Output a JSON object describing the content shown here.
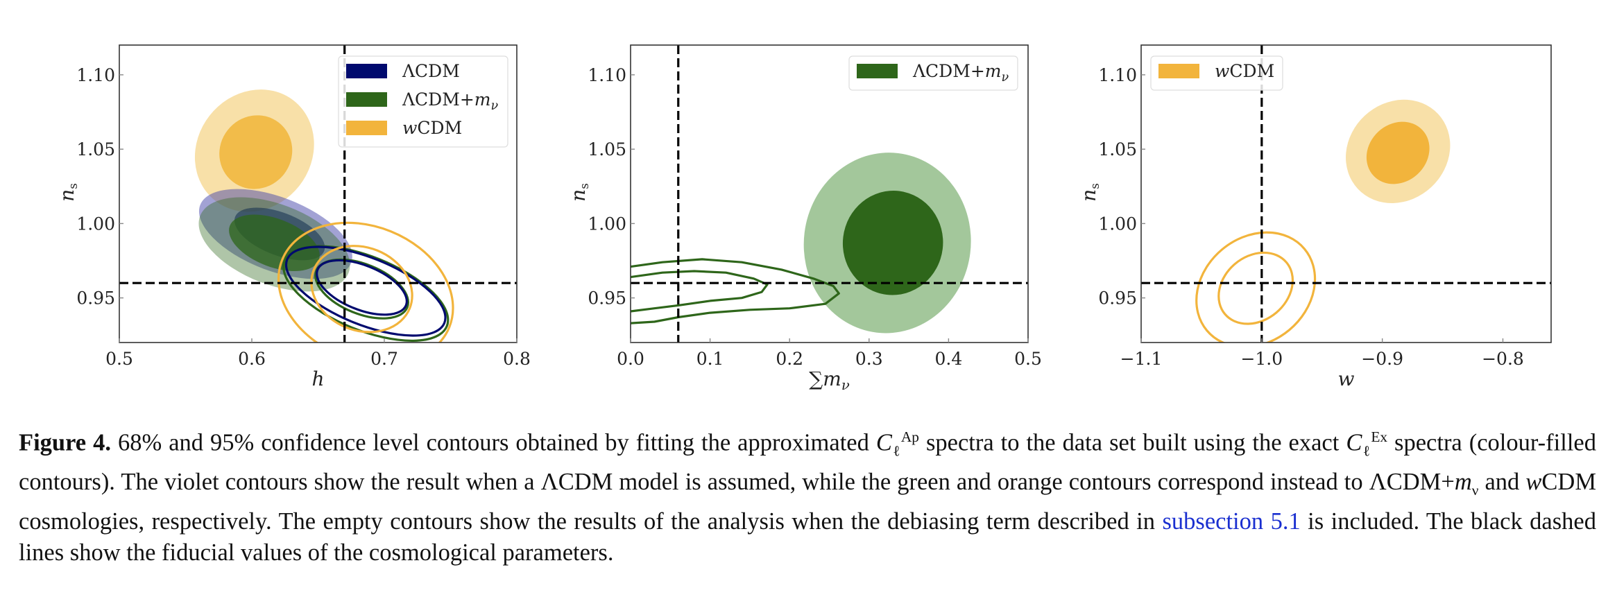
{
  "chart_data": [
    {
      "type": "contour",
      "panel": "h-ns",
      "xlabel": "h",
      "ylabel": "n_s",
      "xlim": [
        0.5,
        0.8
      ],
      "ylim": [
        0.92,
        1.12
      ],
      "xticks": [
        "0.5",
        "0.6",
        "0.7",
        "0.8"
      ],
      "xtick_values": [
        0.5,
        0.6,
        0.7,
        0.8
      ],
      "yticks": [
        "0.95",
        "1.00",
        "1.05",
        "1.10"
      ],
      "ytick_values": [
        0.95,
        1.0,
        1.05,
        1.1
      ],
      "fiducial": {
        "x": 0.67,
        "y": 0.96
      },
      "legend": {
        "placement": "top-right",
        "entries": [
          {
            "label": "ΛCDM",
            "color": "#000a6e"
          },
          {
            "label": "ΛCDM+m_ν",
            "color": "#2e661a"
          },
          {
            "label": "wCDM",
            "color": "#f2b43c"
          }
        ]
      },
      "contours": [
        {
          "model": "wCDM",
          "style": "filled",
          "level": "95%",
          "color": "#f8e0a8",
          "cx": 0.602,
          "cy": 1.049,
          "rx": 0.043,
          "ry": 0.0095,
          "angle": -38
        },
        {
          "model": "wCDM",
          "style": "filled",
          "level": "68%",
          "color": "#f2bc4a",
          "cx": 0.603,
          "cy": 1.048,
          "rx": 0.027,
          "ry": 0.0056,
          "angle": -38
        },
        {
          "model": "ΛCDM",
          "style": "filled",
          "level": "95%",
          "color": "rgba(70,70,170,0.5)",
          "cx": 0.618,
          "cy": 0.993,
          "rx": 0.061,
          "ry": 0.0055,
          "angle": -21
        },
        {
          "model": "ΛCDM",
          "style": "filled",
          "level": "68%",
          "color": "rgba(0,10,110,0.55)",
          "cx": 0.621,
          "cy": 0.993,
          "rx": 0.036,
          "ry": 0.0032,
          "angle": -21
        },
        {
          "model": "ΛCDM+m_ν",
          "style": "filled",
          "level": "95%",
          "color": "rgba(46,102,26,0.38)",
          "cx": 0.617,
          "cy": 0.986,
          "rx": 0.06,
          "ry": 0.006,
          "angle": -21
        },
        {
          "model": "ΛCDM+m_ν",
          "style": "filled",
          "level": "68%",
          "color": "rgba(46,102,26,0.75)",
          "cx": 0.617,
          "cy": 0.987,
          "rx": 0.036,
          "ry": 0.0036,
          "angle": -21
        },
        {
          "model": "ΛCDM+m_ν",
          "style": "open",
          "level": "95%",
          "color": "#2e661a",
          "cx": 0.686,
          "cy": 0.953,
          "rx": 0.066,
          "ry": 0.0055,
          "angle": -22
        },
        {
          "model": "ΛCDM",
          "style": "open",
          "level": "95%",
          "color": "#000a6e",
          "cx": 0.686,
          "cy": 0.9545,
          "rx": 0.064,
          "ry": 0.005,
          "angle": -22
        },
        {
          "model": "ΛCDM+m_ν",
          "style": "open",
          "level": "68%",
          "color": "#2e661a",
          "cx": 0.683,
          "cy": 0.956,
          "rx": 0.037,
          "ry": 0.0037,
          "angle": -22
        },
        {
          "model": "ΛCDM",
          "style": "open",
          "level": "68%",
          "color": "#000a6e",
          "cx": 0.683,
          "cy": 0.957,
          "rx": 0.036,
          "ry": 0.0033,
          "angle": -22
        },
        {
          "model": "wCDM",
          "style": "open",
          "level": "95%",
          "color": "#f2b43c",
          "cx": 0.686,
          "cy": 0.953,
          "rx": 0.068,
          "ry": 0.01,
          "angle": -22
        },
        {
          "model": "wCDM",
          "style": "open",
          "level": "68%",
          "color": "#f2b43c",
          "cx": 0.683,
          "cy": 0.956,
          "rx": 0.039,
          "ry": 0.0062,
          "angle": -22
        }
      ]
    },
    {
      "type": "contour",
      "panel": "mnu-ns",
      "xlabel": "∑m_ν",
      "ylabel": "n_s",
      "xlim": [
        0.0,
        0.5
      ],
      "ylim": [
        0.92,
        1.12
      ],
      "xticks": [
        "0.0",
        "0.1",
        "0.2",
        "0.3",
        "0.4",
        "0.5"
      ],
      "xtick_values": [
        0.0,
        0.1,
        0.2,
        0.3,
        0.4,
        0.5
      ],
      "yticks": [
        "0.95",
        "1.00",
        "1.05",
        "1.10"
      ],
      "ytick_values": [
        0.95,
        1.0,
        1.05,
        1.1
      ],
      "fiducial": {
        "x": 0.06,
        "y": 0.96
      },
      "legend": {
        "placement": "top-right",
        "entries": [
          {
            "label": "ΛCDM+m_ν",
            "color": "#2e661a"
          }
        ]
      },
      "contours": [
        {
          "model": "ΛCDM+m_ν",
          "style": "filled",
          "level": "95%",
          "color": "#a3c79b",
          "cx": 0.323,
          "cy": 0.987,
          "rx": 0.105,
          "ry": 0.0135,
          "angle": -7
        },
        {
          "model": "ΛCDM+m_ν",
          "style": "filled",
          "level": "68%",
          "color": "#2e661a",
          "cx": 0.33,
          "cy": 0.987,
          "rx": 0.063,
          "ry": 0.0078,
          "angle": -7
        }
      ],
      "open_contours": [
        {
          "model": "ΛCDM+m_ν",
          "level": "95%",
          "color": "#2e661a",
          "points": [
            [
              0.0,
              0.971
            ],
            [
              0.04,
              0.974
            ],
            [
              0.09,
              0.976
            ],
            [
              0.14,
              0.974
            ],
            [
              0.19,
              0.969
            ],
            [
              0.23,
              0.963
            ],
            [
              0.255,
              0.958
            ],
            [
              0.262,
              0.953
            ],
            [
              0.245,
              0.946
            ],
            [
              0.2,
              0.943
            ],
            [
              0.15,
              0.942
            ],
            [
              0.1,
              0.94
            ],
            [
              0.06,
              0.937
            ],
            [
              0.03,
              0.934
            ],
            [
              0.0,
              0.933
            ]
          ]
        },
        {
          "model": "ΛCDM+m_ν",
          "level": "68%",
          "color": "#2e661a",
          "points": [
            [
              0.0,
              0.964
            ],
            [
              0.04,
              0.967
            ],
            [
              0.08,
              0.968
            ],
            [
              0.12,
              0.967
            ],
            [
              0.155,
              0.963
            ],
            [
              0.172,
              0.959
            ],
            [
              0.165,
              0.954
            ],
            [
              0.14,
              0.95
            ],
            [
              0.1,
              0.948
            ],
            [
              0.06,
              0.945
            ],
            [
              0.03,
              0.943
            ],
            [
              0.0,
              0.941
            ]
          ]
        }
      ]
    },
    {
      "type": "contour",
      "panel": "w-ns",
      "xlabel": "w",
      "ylabel": "n_s",
      "xlim": [
        -1.1,
        -0.76
      ],
      "ylim": [
        0.92,
        1.12
      ],
      "xticks": [
        "−1.1",
        "−1.0",
        "−0.9",
        "−0.8"
      ],
      "xtick_values": [
        -1.1,
        -1.0,
        -0.9,
        -0.8
      ],
      "yticks": [
        "0.95",
        "1.00",
        "1.05",
        "1.10"
      ],
      "ytick_values": [
        0.95,
        1.0,
        1.05,
        1.1
      ],
      "fiducial": {
        "x": -1.0,
        "y": 0.96
      },
      "legend": {
        "placement": "top-left",
        "entries": [
          {
            "label": "wCDM",
            "color": "#f2b43c"
          }
        ]
      },
      "contours": [
        {
          "model": "wCDM",
          "style": "filled",
          "level": "95%",
          "color": "#f8e0a8",
          "cx": -0.887,
          "cy": 1.0485,
          "rx": 0.0405,
          "ry": 0.0082,
          "angle": -47
        },
        {
          "model": "wCDM",
          "style": "filled",
          "level": "68%",
          "color": "#f2b43c",
          "cx": -0.887,
          "cy": 1.0475,
          "rx": 0.024,
          "ry": 0.005,
          "angle": -47
        },
        {
          "model": "wCDM",
          "style": "open",
          "level": "95%",
          "color": "#f2b43c",
          "cx": -1.005,
          "cy": 0.9555,
          "rx": 0.0435,
          "ry": 0.0095,
          "angle": -50
        },
        {
          "model": "wCDM",
          "style": "open",
          "level": "68%",
          "color": "#f2b43c",
          "cx": -1.005,
          "cy": 0.9565,
          "rx": 0.0265,
          "ry": 0.006,
          "angle": -50
        }
      ]
    }
  ],
  "caption": {
    "label": "Figure 4.",
    "seg1": " 68% and 95% confidence level contours obtained by fitting the approximated ",
    "c_sym": "C",
    "c_sub": "ℓ",
    "c_sup_ap": "Ap",
    "seg2": " spectra to the data set built using the exact ",
    "c_sup_ex": "Ex",
    "seg3": " spectra (colour-filled contours). The violet contours show the result when a ΛCDM model is assumed, while the green and orange contours correspond instead to ΛCDM+",
    "m_sym": "m",
    "nu_sym": "ν",
    "seg4": " and ",
    "w_sym": "w",
    "seg5": "CDM cosmologies, respectively. The empty contours show the results of the analysis when the debiasing term described in ",
    "link": "subsection 5.1",
    "seg6": " is included. The black dashed lines show the fiducial values of the cosmological parameters."
  }
}
